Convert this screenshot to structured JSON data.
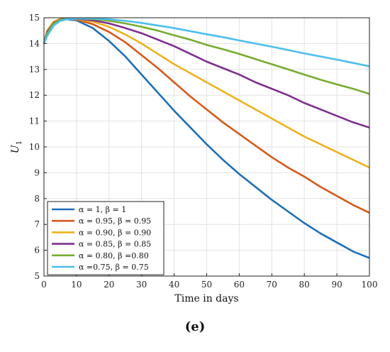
{
  "caption": "(e)",
  "chart_data": {
    "type": "line",
    "xlabel": "Time in days",
    "ylabel": "U1",
    "xlim": [
      0,
      100
    ],
    "ylim": [
      5,
      15
    ],
    "xticks": [
      0,
      10,
      20,
      30,
      40,
      50,
      60,
      70,
      80,
      90,
      100
    ],
    "yticks": [
      5,
      6,
      7,
      8,
      9,
      10,
      11,
      12,
      13,
      14,
      15
    ],
    "grid": true,
    "legend_position": "bottom-left",
    "series": [
      {
        "name": "α = 1, β = 1",
        "color": "#1f6fb8",
        "x": [
          0,
          1,
          3,
          5,
          7,
          10,
          15,
          20,
          25,
          30,
          35,
          40,
          45,
          50,
          55,
          60,
          65,
          70,
          75,
          80,
          85,
          90,
          95,
          100
        ],
        "y": [
          14.0,
          14.45,
          14.8,
          14.92,
          14.94,
          14.9,
          14.6,
          14.1,
          13.5,
          12.8,
          12.1,
          11.4,
          10.75,
          10.1,
          9.5,
          8.95,
          8.45,
          7.95,
          7.5,
          7.05,
          6.65,
          6.3,
          5.95,
          5.7
        ]
      },
      {
        "name": "α = 0.95, β = 0.95",
        "color": "#d45a1c",
        "x": [
          0,
          1,
          3,
          5,
          7,
          10,
          15,
          20,
          25,
          30,
          35,
          40,
          45,
          50,
          55,
          60,
          65,
          70,
          75,
          80,
          85,
          90,
          95,
          100
        ],
        "y": [
          14.0,
          14.5,
          14.85,
          14.95,
          14.97,
          14.93,
          14.75,
          14.45,
          14.05,
          13.55,
          13.05,
          12.5,
          11.95,
          11.45,
          10.95,
          10.5,
          10.05,
          9.6,
          9.2,
          8.85,
          8.45,
          8.1,
          7.75,
          7.45
        ]
      },
      {
        "name": "α = 0.90, β = 0.90",
        "color": "#edb120",
        "x": [
          0,
          1,
          3,
          5,
          7,
          10,
          15,
          20,
          25,
          30,
          35,
          40,
          45,
          50,
          55,
          60,
          65,
          70,
          75,
          80,
          85,
          90,
          95,
          100
        ],
        "y": [
          14.0,
          14.5,
          14.85,
          14.95,
          14.97,
          14.95,
          14.85,
          14.65,
          14.35,
          14.0,
          13.6,
          13.2,
          12.85,
          12.5,
          12.15,
          11.8,
          11.45,
          11.1,
          10.75,
          10.4,
          10.1,
          9.8,
          9.5,
          9.2
        ]
      },
      {
        "name": "α = 0.85, β = 0.85",
        "color": "#7e2f8e",
        "x": [
          0,
          1,
          3,
          5,
          7,
          10,
          15,
          20,
          25,
          30,
          35,
          40,
          45,
          50,
          55,
          60,
          65,
          70,
          75,
          80,
          85,
          90,
          95,
          100
        ],
        "y": [
          14.0,
          14.45,
          14.8,
          14.93,
          14.97,
          14.96,
          14.9,
          14.78,
          14.6,
          14.4,
          14.15,
          13.9,
          13.6,
          13.3,
          13.05,
          12.8,
          12.5,
          12.25,
          12.0,
          11.7,
          11.45,
          11.2,
          10.95,
          10.75
        ]
      },
      {
        "name": "α = 0.80, β =0.80",
        "color": "#77ac30",
        "x": [
          0,
          1,
          3,
          5,
          7,
          10,
          15,
          20,
          25,
          30,
          35,
          40,
          45,
          50,
          55,
          60,
          65,
          70,
          75,
          80,
          85,
          90,
          95,
          100
        ],
        "y": [
          14.0,
          14.4,
          14.78,
          14.92,
          14.96,
          14.97,
          14.95,
          14.88,
          14.78,
          14.65,
          14.5,
          14.32,
          14.15,
          13.95,
          13.78,
          13.6,
          13.4,
          13.2,
          13.0,
          12.8,
          12.6,
          12.42,
          12.25,
          12.05
        ]
      },
      {
        "name": "α =0.75, β = 0.75",
        "color": "#4dbeee",
        "x": [
          0,
          1,
          3,
          5,
          7,
          10,
          15,
          20,
          25,
          30,
          35,
          40,
          45,
          50,
          55,
          60,
          65,
          70,
          75,
          80,
          85,
          90,
          95,
          100
        ],
        "y": [
          14.0,
          14.3,
          14.7,
          14.88,
          14.94,
          14.97,
          14.97,
          14.94,
          14.88,
          14.8,
          14.7,
          14.6,
          14.48,
          14.36,
          14.25,
          14.12,
          14.0,
          13.88,
          13.75,
          13.62,
          13.5,
          13.38,
          13.25,
          13.12
        ]
      }
    ]
  }
}
